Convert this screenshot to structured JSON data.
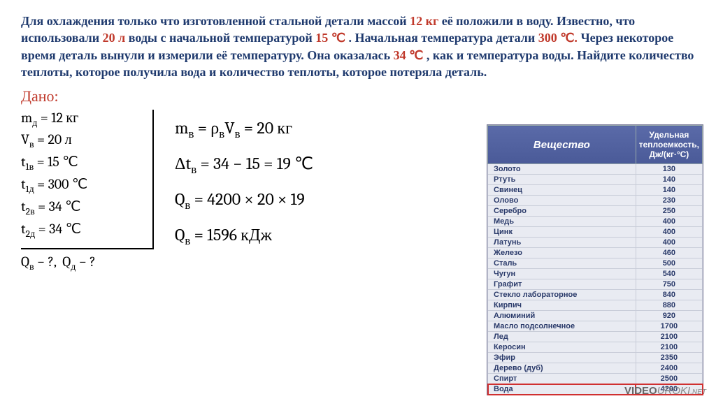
{
  "problem": {
    "prefix1": "Для охлаждения только что изготовленной стальной детали массой ",
    "val1": "12 кг",
    "seg2": " её положили в воду. Известно, что использовали ",
    "val2": "20 л",
    "seg3": " воды с начальной температурой ",
    "val3": "15 ℃",
    "seg4": ". Начальная температура детали ",
    "val4": "300 ℃.",
    "seg5": " Через некоторое время деталь вынули и измерили её температуру. Она оказалась ",
    "val5": "34 ℃",
    "seg6": ", как и температура воды. Найдите количество теплоты, которое получила вода и количество теплоты, которое потеряла деталь."
  },
  "dano_label": "Дано:",
  "given": {
    "mD": "mд = 12 кг",
    "Vv": "Vв = 20 л",
    "t1v": "t1в = 15 ℃",
    "t1d": "t1д = 300 ℃",
    "t2v": "t2в = 34 ℃",
    "t2d": "t2д = 34 ℃"
  },
  "find": "Qв − ?,  Qд − ?",
  "solution": {
    "line1": "mв = ρвVв = 20 кг",
    "line2": "Δtв = 34 − 15 = 19 ℃",
    "line3": "Qв = 4200 × 20 × 19",
    "line4": "Qв = 1596 кДж"
  },
  "table": {
    "col1": "Вещество",
    "col2": "Удельная теплоемкость, Дж/(кг·°С)",
    "rows": [
      [
        "Золото",
        "130"
      ],
      [
        "Ртуть",
        "140"
      ],
      [
        "Свинец",
        "140"
      ],
      [
        "Олово",
        "230"
      ],
      [
        "Серебро",
        "250"
      ],
      [
        "Медь",
        "400"
      ],
      [
        "Цинк",
        "400"
      ],
      [
        "Латунь",
        "400"
      ],
      [
        "Железо",
        "460"
      ],
      [
        "Сталь",
        "500"
      ],
      [
        "Чугун",
        "540"
      ],
      [
        "Графит",
        "750"
      ],
      [
        "Стекло лабораторное",
        "840"
      ],
      [
        "Кирпич",
        "880"
      ],
      [
        "Алюминий",
        "920"
      ],
      [
        "Масло подсолнечное",
        "1700"
      ],
      [
        "Лед",
        "2100"
      ],
      [
        "Керосин",
        "2100"
      ],
      [
        "Эфир",
        "2350"
      ],
      [
        "Дерево (дуб)",
        "2400"
      ],
      [
        "Спирт",
        "2500"
      ],
      [
        "Вода",
        "4200"
      ]
    ],
    "highlight_index": 21,
    "header_bg": "#4a5a98",
    "row_bg": "#e9ebf2",
    "highlight_color": "#d03030"
  },
  "watermark": {
    "brand1": "VIDEO",
    "brand2": "UROKI",
    "suffix": ".NET"
  }
}
